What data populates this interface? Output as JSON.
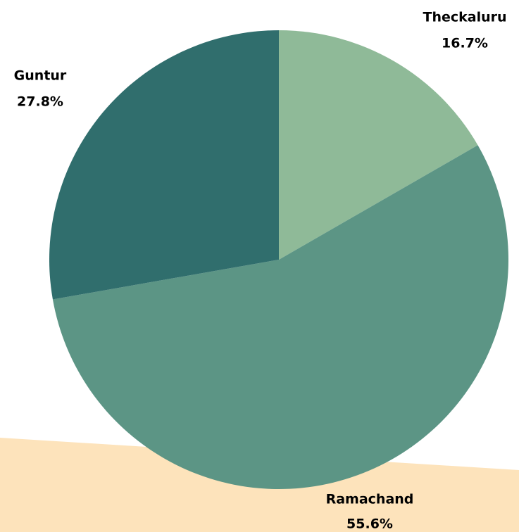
{
  "chart_data": {
    "type": "pie",
    "categories": [
      "Theckaluru",
      "Ramachand",
      "Guntur"
    ],
    "values": [
      16.7,
      55.6,
      27.8
    ],
    "value_labels": [
      "16.7%",
      "55.6%",
      "27.8%"
    ],
    "colors": [
      "#8fba98",
      "#5c9585",
      "#306e6d"
    ]
  }
}
